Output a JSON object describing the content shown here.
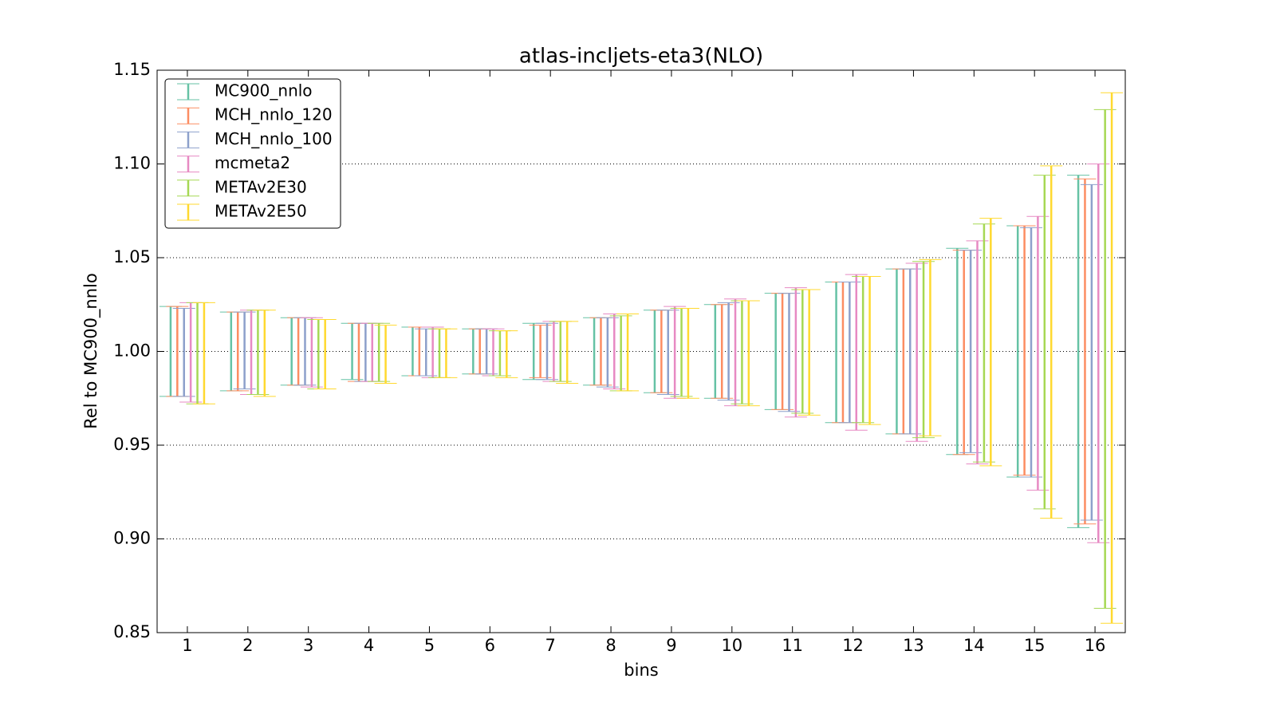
{
  "chart_data": {
    "type": "errorbar",
    "title": "atlas-incljets-eta3(NLO)",
    "x_label": "bins",
    "y_label": "Rel to MC900_nnlo",
    "xlim": [
      0.5,
      16.5
    ],
    "xticks": [
      1,
      2,
      3,
      4,
      5,
      6,
      7,
      8,
      9,
      10,
      11,
      12,
      13,
      14,
      15,
      16
    ],
    "ylim": [
      0.85,
      1.15
    ],
    "yticks": [
      {
        "value": 0.85,
        "label": "0.85"
      },
      {
        "value": 0.9,
        "label": "0.90"
      },
      {
        "value": 0.95,
        "label": "0.95"
      },
      {
        "value": 1.0,
        "label": "1.00"
      },
      {
        "value": 1.05,
        "label": "1.05"
      },
      {
        "value": 1.1,
        "label": "1.10"
      },
      {
        "value": 1.15,
        "label": "1.15"
      }
    ],
    "grid": true,
    "legend": "upper left",
    "x": [
      1,
      2,
      3,
      4,
      5,
      6,
      7,
      8,
      9,
      10,
      11,
      12,
      13,
      14,
      15,
      16
    ],
    "series": [
      {
        "name": "MC900_nnlo",
        "color": "#66c2a5",
        "low": [
          0.976,
          0.979,
          0.982,
          0.985,
          0.987,
          0.988,
          0.985,
          0.982,
          0.978,
          0.975,
          0.969,
          0.962,
          0.956,
          0.945,
          0.933,
          0.906
        ],
        "high": [
          1.024,
          1.021,
          1.018,
          1.015,
          1.013,
          1.012,
          1.015,
          1.018,
          1.022,
          1.025,
          1.031,
          1.037,
          1.044,
          1.055,
          1.067,
          1.094
        ]
      },
      {
        "name": "MCH_nnlo_120",
        "color": "#fc8d62",
        "low": [
          0.976,
          0.979,
          0.982,
          0.984,
          0.987,
          0.988,
          0.986,
          0.982,
          0.978,
          0.975,
          0.969,
          0.962,
          0.956,
          0.945,
          0.934,
          0.908
        ],
        "high": [
          1.024,
          1.021,
          1.018,
          1.015,
          1.013,
          1.012,
          1.014,
          1.018,
          1.022,
          1.025,
          1.031,
          1.037,
          1.044,
          1.054,
          1.067,
          1.092
        ]
      },
      {
        "name": "MCH_nnlo_100",
        "color": "#8da0cb",
        "low": [
          0.976,
          0.98,
          0.982,
          0.984,
          0.987,
          0.988,
          0.985,
          0.981,
          0.977,
          0.974,
          0.968,
          0.962,
          0.956,
          0.946,
          0.933,
          0.91
        ],
        "high": [
          1.023,
          1.021,
          1.018,
          1.015,
          1.012,
          1.012,
          1.015,
          1.018,
          1.022,
          1.026,
          1.031,
          1.037,
          1.044,
          1.054,
          1.066,
          1.089
        ]
      },
      {
        "name": "mcmeta2",
        "color": "#e78ac3",
        "low": [
          0.973,
          0.977,
          0.981,
          0.984,
          0.986,
          0.987,
          0.984,
          0.98,
          0.975,
          0.971,
          0.965,
          0.958,
          0.952,
          0.94,
          0.926,
          0.898
        ],
        "high": [
          1.026,
          1.022,
          1.018,
          1.015,
          1.013,
          1.012,
          1.016,
          1.02,
          1.024,
          1.028,
          1.034,
          1.041,
          1.047,
          1.059,
          1.072,
          1.1
        ]
      },
      {
        "name": "METAv2E30",
        "color": "#a6d854",
        "low": [
          0.972,
          0.977,
          0.98,
          0.984,
          0.986,
          0.987,
          0.984,
          0.979,
          0.976,
          0.972,
          0.967,
          0.962,
          0.954,
          0.941,
          0.916,
          0.863
        ],
        "high": [
          1.026,
          1.022,
          1.017,
          1.015,
          1.012,
          1.011,
          1.016,
          1.019,
          1.023,
          1.027,
          1.033,
          1.04,
          1.048,
          1.068,
          1.094,
          1.129
        ]
      },
      {
        "name": "METAv2E50",
        "color": "#ffd92f",
        "low": [
          0.972,
          0.976,
          0.98,
          0.983,
          0.986,
          0.986,
          0.983,
          0.979,
          0.975,
          0.971,
          0.966,
          0.961,
          0.955,
          0.939,
          0.911,
          0.855
        ],
        "high": [
          1.026,
          1.022,
          1.017,
          1.014,
          1.012,
          1.011,
          1.016,
          1.02,
          1.023,
          1.027,
          1.033,
          1.04,
          1.049,
          1.071,
          1.099,
          1.138
        ]
      }
    ]
  }
}
